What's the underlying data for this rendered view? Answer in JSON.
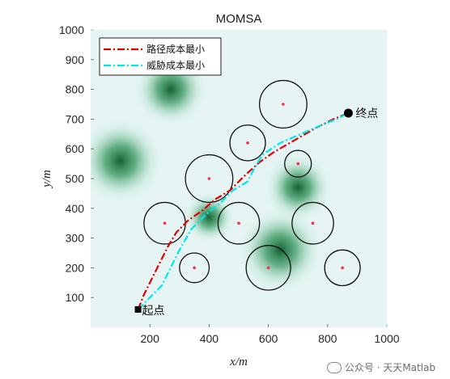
{
  "chart_data": {
    "type": "line",
    "title": "MOMSA",
    "xlabel": "x/m",
    "ylabel": "y/m",
    "xlim": [
      0,
      1000
    ],
    "ylim": [
      0,
      1000
    ],
    "xticks": [
      "200",
      "400",
      "600",
      "800",
      "1000"
    ],
    "yticks": [
      "100",
      "200",
      "300",
      "400",
      "500",
      "600",
      "700",
      "800",
      "900",
      "1000"
    ],
    "grid": false,
    "legend_position": "top-left",
    "background_colormap": "white-to-green threat field",
    "threat_centers": [
      [
        270,
        800
      ],
      [
        100,
        560
      ],
      [
        640,
        260
      ],
      [
        700,
        470
      ],
      [
        400,
        370
      ]
    ],
    "series": [
      {
        "name": "路径成本最小",
        "color": "#e00000",
        "style": "dash-dot",
        "x": [
          160,
          180,
          200,
          230,
          260,
          290,
          330,
          380,
          420,
          470,
          520,
          570,
          620,
          690,
          760,
          820,
          870
        ],
        "y": [
          60,
          110,
          150,
          210,
          270,
          320,
          360,
          395,
          430,
          460,
          510,
          555,
          590,
          630,
          670,
          700,
          720
        ]
      },
      {
        "name": "威胁成本最小",
        "color": "#00e5ee",
        "style": "dash-dot",
        "x": [
          160,
          200,
          240,
          270,
          300,
          340,
          390,
          440,
          480,
          530,
          550,
          580,
          640,
          710,
          780,
          830,
          870
        ],
        "y": [
          60,
          100,
          140,
          200,
          260,
          330,
          380,
          420,
          460,
          490,
          530,
          580,
          620,
          650,
          680,
          700,
          720
        ]
      }
    ],
    "obstacles": [
      {
        "x": 650,
        "y": 750,
        "r": 80
      },
      {
        "x": 530,
        "y": 620,
        "r": 60
      },
      {
        "x": 700,
        "y": 550,
        "r": 45
      },
      {
        "x": 400,
        "y": 500,
        "r": 80
      },
      {
        "x": 250,
        "y": 350,
        "r": 70
      },
      {
        "x": 500,
        "y": 350,
        "r": 70
      },
      {
        "x": 750,
        "y": 350,
        "r": 70
      },
      {
        "x": 350,
        "y": 200,
        "r": 50
      },
      {
        "x": 600,
        "y": 200,
        "r": 75
      },
      {
        "x": 850,
        "y": 200,
        "r": 60
      }
    ],
    "start": {
      "x": 160,
      "y": 60,
      "label": "起点"
    },
    "end": {
      "x": 870,
      "y": 720,
      "label": "终点"
    }
  },
  "watermark": {
    "icon": "wechat-icon",
    "text": "公众号 · 天天Matlab"
  }
}
